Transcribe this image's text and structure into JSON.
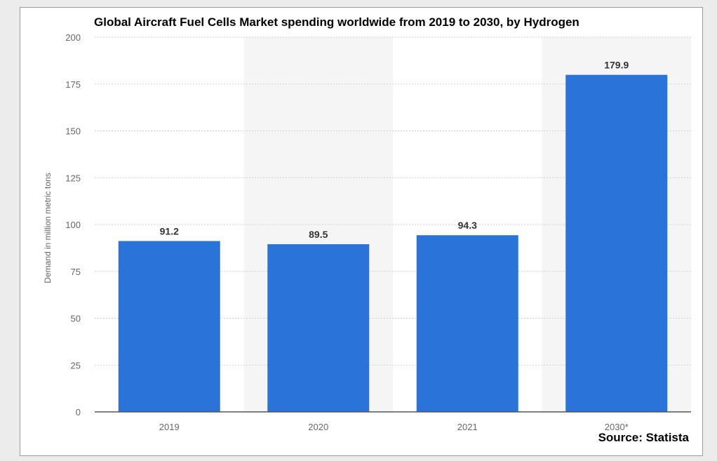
{
  "source": "Source: Statista",
  "chart_data": {
    "type": "bar",
    "title": "Global Aircraft Fuel Cells Market spending worldwide from 2019 to 2030, by Hydrogen",
    "xlabel": "",
    "ylabel": "Demand in million metric tons",
    "categories": [
      "2019",
      "2020",
      "2021",
      "2030*"
    ],
    "values": [
      91.2,
      89.5,
      94.3,
      179.9
    ],
    "value_labels": [
      "91.2",
      "89.5",
      "94.3",
      "179.9"
    ],
    "ylim": [
      0,
      200
    ],
    "yticks": [
      0,
      25,
      50,
      75,
      100,
      125,
      150,
      175,
      200
    ],
    "grid": true,
    "bar_color": "#2a74d9",
    "alt_band_color": "#f5f5f5"
  }
}
